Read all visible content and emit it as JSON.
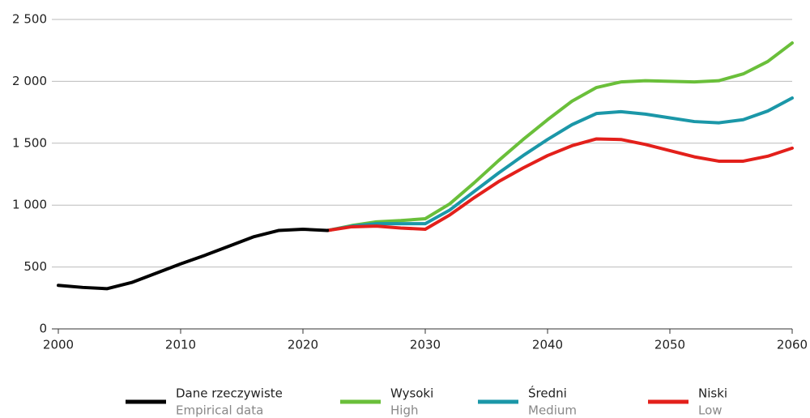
{
  "chart_data": {
    "type": "line",
    "x": [
      2000,
      2002,
      2004,
      2006,
      2008,
      2010,
      2012,
      2014,
      2016,
      2018,
      2020,
      2022,
      2024,
      2026,
      2028,
      2030,
      2032,
      2034,
      2036,
      2038,
      2040,
      2042,
      2044,
      2046,
      2048,
      2050,
      2052,
      2054,
      2056,
      2058,
      2060
    ],
    "series": [
      {
        "name": "Dane rzeczywiste",
        "subname": "Empirical data",
        "color": "#000000",
        "values": [
          352,
          335,
          325,
          375,
          450,
          525,
          595,
          670,
          745,
          795,
          805,
          795,
          null,
          null,
          null,
          null,
          null,
          null,
          null,
          null,
          null,
          null,
          null,
          null,
          null,
          null,
          null,
          null,
          null,
          null,
          null
        ]
      },
      {
        "name": "Wysoki",
        "subname": "High",
        "color": "#6abf3a",
        "values": [
          null,
          null,
          null,
          null,
          null,
          null,
          null,
          null,
          null,
          null,
          null,
          795,
          835,
          865,
          875,
          890,
          1010,
          1180,
          1360,
          1530,
          1690,
          1840,
          1950,
          1995,
          2005,
          2000,
          1995,
          2005,
          2060,
          2160,
          2310
        ]
      },
      {
        "name": "Średni",
        "subname": "Medium",
        "color": "#1b97a8",
        "values": [
          null,
          null,
          null,
          null,
          null,
          null,
          null,
          null,
          null,
          null,
          null,
          795,
          830,
          850,
          850,
          850,
          960,
          1110,
          1260,
          1400,
          1530,
          1650,
          1740,
          1755,
          1735,
          1705,
          1675,
          1665,
          1690,
          1760,
          1865
        ]
      },
      {
        "name": "Niski",
        "subname": "Low",
        "color": "#e3201b",
        "values": [
          null,
          null,
          null,
          null,
          null,
          null,
          null,
          null,
          null,
          null,
          null,
          795,
          825,
          830,
          815,
          805,
          920,
          1060,
          1190,
          1300,
          1400,
          1480,
          1535,
          1530,
          1490,
          1440,
          1390,
          1355,
          1355,
          1395,
          1460
        ]
      }
    ],
    "xlim": [
      2000,
      2060
    ],
    "xticks": [
      2000,
      2010,
      2020,
      2030,
      2040,
      2050,
      2060
    ],
    "ylim": [
      0,
      2500
    ],
    "yticks": [
      0,
      500,
      {
        "value": 1000,
        "label": "1 000"
      },
      {
        "value": 1500,
        "label": "1 500"
      },
      {
        "value": 2000,
        "label": "2 000"
      },
      {
        "value": 2500,
        "label": "2 500"
      }
    ],
    "grid": true,
    "legend": "bottom"
  }
}
